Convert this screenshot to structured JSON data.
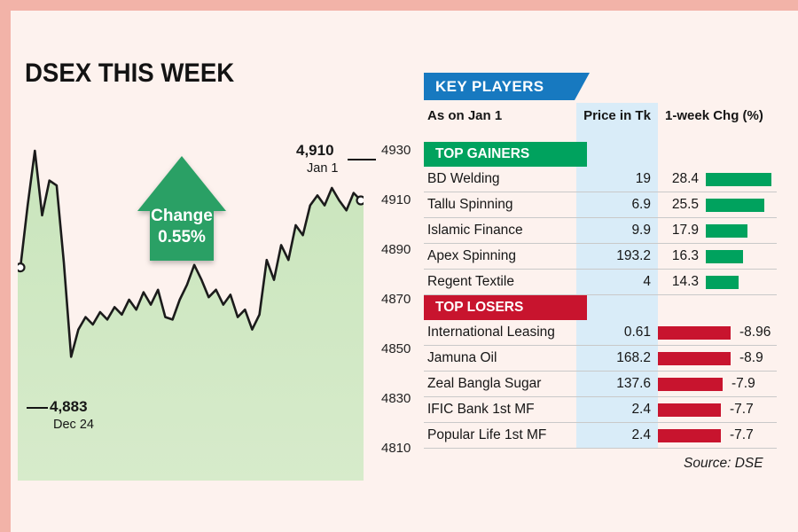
{
  "chart_data": {
    "type": "line",
    "title": "DSEX THIS WEEK",
    "series_name": "DSEX index",
    "x_range": [
      "Dec 24",
      "Jan 1"
    ],
    "ylim": [
      4798,
      4935
    ],
    "grid": false,
    "y_ticks": [
      "4930",
      "4910",
      "4890",
      "4870",
      "4850",
      "4830",
      "4810"
    ],
    "start_annotation": {
      "value": "4,883",
      "date": "Dec 24"
    },
    "end_annotation": {
      "value": "4,910",
      "date": "Jan 1"
    },
    "change_arrow": {
      "line1": "Change",
      "line2": "0.55%"
    },
    "values": [
      4883,
      4908,
      4930,
      4904,
      4918,
      4916,
      4885,
      4847,
      4858,
      4863,
      4860,
      4865,
      4862,
      4867,
      4864,
      4870,
      4866,
      4873,
      4868,
      4874,
      4863,
      4862,
      4870,
      4876,
      4884,
      4878,
      4871,
      4874,
      4868,
      4872,
      4863,
      4866,
      4858,
      4864,
      4886,
      4878,
      4892,
      4886,
      4900,
      4896,
      4908,
      4912,
      4908,
      4915,
      4910,
      4906,
      4913,
      4910
    ]
  },
  "key_players": {
    "banner": "KEY PLAYERS",
    "columns": {
      "name": "As on Jan 1",
      "price": "Price in Tk",
      "chg": "1-week Chg (%)"
    },
    "gainers_banner": "TOP GAINERS",
    "losers_banner": "TOP LOSERS",
    "gainers": [
      {
        "name": "BD Welding",
        "price": "19",
        "chg": "28.4",
        "pct": 28.4
      },
      {
        "name": "Tallu Spinning",
        "price": "6.9",
        "chg": "25.5",
        "pct": 25.5
      },
      {
        "name": "Islamic Finance",
        "price": "9.9",
        "chg": "17.9",
        "pct": 17.9
      },
      {
        "name": "Apex Spinning",
        "price": "193.2",
        "chg": "16.3",
        "pct": 16.3
      },
      {
        "name": "Regent Textile",
        "price": "4",
        "chg": "14.3",
        "pct": 14.3
      }
    ],
    "losers": [
      {
        "name": "International Leasing",
        "price": "0.61",
        "chg": "-8.96",
        "pct": -8.96
      },
      {
        "name": "Jamuna Oil",
        "price": "168.2",
        "chg": "-8.9",
        "pct": -8.9
      },
      {
        "name": "Zeal Bangla Sugar",
        "price": "137.6",
        "chg": "-7.9",
        "pct": -7.9
      },
      {
        "name": "IFIC Bank 1st MF",
        "price": "2.4",
        "chg": "-7.7",
        "pct": -7.7
      },
      {
        "name": "Popular Life 1st MF",
        "price": "2.4",
        "chg": "-7.7",
        "pct": -7.7
      }
    ],
    "source": "Source: DSE"
  },
  "colors": {
    "frame_pink": "#f2b3a8",
    "background": "#fdf2ee",
    "area_fill_top": "#c9e5bc",
    "area_fill_bottom": "#d7ebcb",
    "line": "#1b1b1b",
    "arrow_green": "#2aa065",
    "banner_blue": "#1779c0",
    "banner_green": "#00a25e",
    "banner_red": "#c8142e",
    "price_col_bg": "#d9ecf8",
    "gainer_bar": "#00a25e",
    "loser_bar": "#c8142e"
  }
}
